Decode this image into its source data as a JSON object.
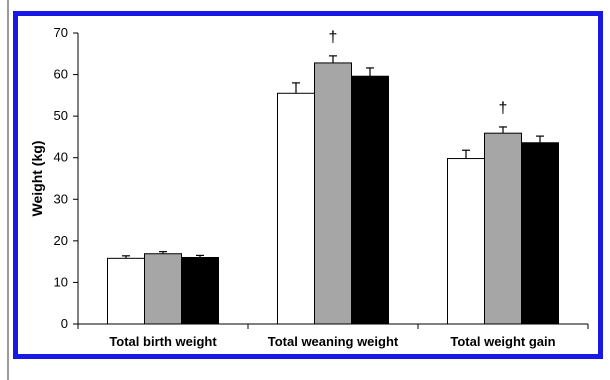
{
  "chart_data": {
    "type": "bar",
    "title": "",
    "xlabel": "",
    "ylabel": "Weight (kg)",
    "ylim": [
      0,
      70
    ],
    "yticks": [
      0,
      10,
      20,
      30,
      40,
      50,
      60,
      70
    ],
    "grid": false,
    "legend": "none",
    "categories": [
      "Total birth weight",
      "Total weaning weight",
      "Total weight gain"
    ],
    "series": [
      {
        "color": "#ffffff",
        "values": [
          15.8,
          55.5,
          39.8
        ],
        "errors": [
          0.6,
          2.5,
          2.0
        ]
      },
      {
        "color": "#a6a6a6",
        "values": [
          16.9,
          62.8,
          45.9
        ],
        "errors": [
          0.5,
          1.7,
          1.5
        ]
      },
      {
        "color": "#000000",
        "values": [
          16.0,
          59.6,
          43.6
        ],
        "errors": [
          0.5,
          2.0,
          1.6
        ]
      }
    ],
    "annotations": [
      {
        "category_index": 1,
        "series_index": 1,
        "text": "†"
      },
      {
        "category_index": 2,
        "series_index": 1,
        "text": "†"
      }
    ]
  }
}
